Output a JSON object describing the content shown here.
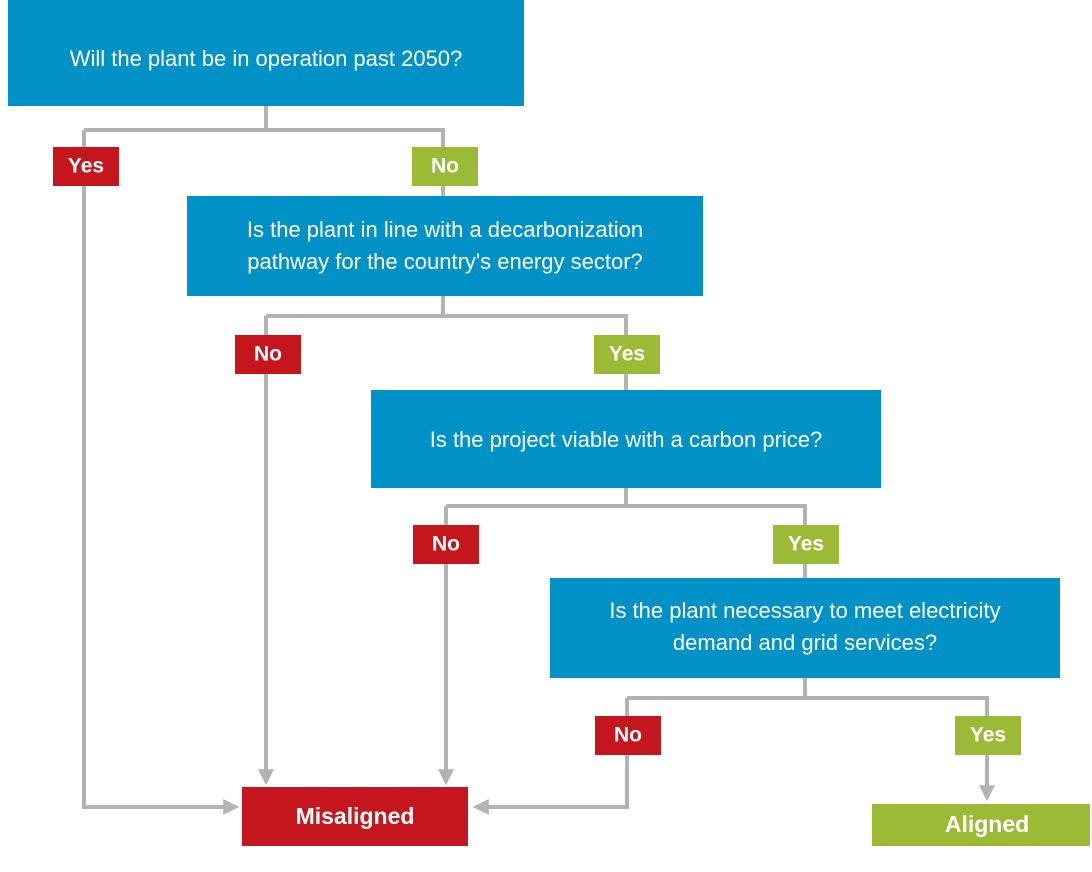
{
  "questions": [
    {
      "lines": [
        "Will the plant be in operation past 2050?"
      ]
    },
    {
      "lines": [
        "Is the plant in line with a decarbonization",
        "pathway for the country's energy sector?"
      ]
    },
    {
      "lines": [
        "Is the project viable with a carbon price?"
      ]
    },
    {
      "lines": [
        "Is the plant necessary to meet electricity",
        "demand and grid services?"
      ]
    }
  ],
  "branches": [
    {
      "left": "Yes",
      "right": "No"
    },
    {
      "left": "No",
      "right": "Yes"
    },
    {
      "left": "No",
      "right": "Yes"
    },
    {
      "left": "No",
      "right": "Yes"
    }
  ],
  "outcomes": {
    "misaligned": "Misaligned",
    "aligned": "Aligned"
  }
}
